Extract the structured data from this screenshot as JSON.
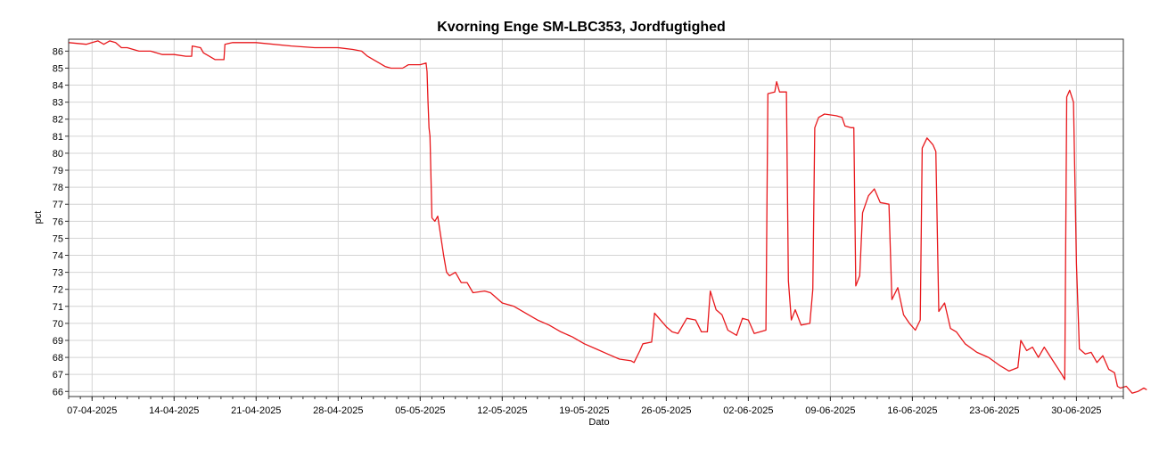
{
  "chart_data": {
    "type": "line",
    "title": "Kvorning Enge SM-LBC353, Jordfugtighed",
    "xlabel": "Dato",
    "ylabel": "pct",
    "xlim": [
      "2025-04-05",
      "2025-07-04"
    ],
    "ylim": [
      65.7,
      86.7
    ],
    "grid": true,
    "x_ticks": [
      "07-04-2025",
      "14-04-2025",
      "21-04-2025",
      "28-04-2025",
      "05-05-2025",
      "12-05-2025",
      "19-05-2025",
      "26-05-2025",
      "02-06-2025",
      "09-06-2025",
      "16-06-2025",
      "23-06-2025",
      "30-06-2025"
    ],
    "y_ticks": [
      66,
      67,
      68,
      69,
      70,
      71,
      72,
      73,
      74,
      75,
      76,
      77,
      78,
      79,
      80,
      81,
      82,
      83,
      84,
      85,
      86
    ],
    "series": [
      {
        "color": "#e8181c",
        "points": [
          [
            "2025-04-05 00:00",
            86.5
          ],
          [
            "2025-04-06 12:00",
            86.4
          ],
          [
            "2025-04-07 00:00",
            86.5
          ],
          [
            "2025-04-07 12:00",
            86.6
          ],
          [
            "2025-04-08 00:00",
            86.4
          ],
          [
            "2025-04-08 12:00",
            86.6
          ],
          [
            "2025-04-09 00:00",
            86.5
          ],
          [
            "2025-04-09 12:00",
            86.2
          ],
          [
            "2025-04-10 00:00",
            86.2
          ],
          [
            "2025-04-11 00:00",
            86.0
          ],
          [
            "2025-04-12 00:00",
            86.0
          ],
          [
            "2025-04-13 00:00",
            85.8
          ],
          [
            "2025-04-14 00:00",
            85.8
          ],
          [
            "2025-04-15 00:00",
            85.7
          ],
          [
            "2025-04-15 12:00",
            85.7
          ],
          [
            "2025-04-15 13:00",
            86.3
          ],
          [
            "2025-04-16 06:00",
            86.2
          ],
          [
            "2025-04-16 12:00",
            85.9
          ],
          [
            "2025-04-17 00:00",
            85.7
          ],
          [
            "2025-04-17 12:00",
            85.5
          ],
          [
            "2025-04-18 06:00",
            85.5
          ],
          [
            "2025-04-18 08:00",
            86.4
          ],
          [
            "2025-04-19 00:00",
            86.5
          ],
          [
            "2025-04-21 00:00",
            86.5
          ],
          [
            "2025-04-24 00:00",
            86.3
          ],
          [
            "2025-04-26 00:00",
            86.2
          ],
          [
            "2025-04-28 00:00",
            86.2
          ],
          [
            "2025-04-29 06:00",
            86.1
          ],
          [
            "2025-04-30 00:00",
            86.0
          ],
          [
            "2025-04-30 12:00",
            85.7
          ],
          [
            "2025-05-01 00:00",
            85.5
          ],
          [
            "2025-05-01 12:00",
            85.3
          ],
          [
            "2025-05-02 00:00",
            85.1
          ],
          [
            "2025-05-02 12:00",
            85.0
          ],
          [
            "2025-05-03 12:00",
            85.0
          ],
          [
            "2025-05-04 00:00",
            85.2
          ],
          [
            "2025-05-05 00:00",
            85.2
          ],
          [
            "2025-05-05 12:00",
            85.3
          ],
          [
            "2025-05-05 14:00",
            84.8
          ],
          [
            "2025-05-05 16:00",
            83.0
          ],
          [
            "2025-05-05 18:00",
            81.5
          ],
          [
            "2025-05-05 20:00",
            81.0
          ],
          [
            "2025-05-06 00:00",
            76.2
          ],
          [
            "2025-05-06 06:00",
            76.0
          ],
          [
            "2025-05-06 12:00",
            76.3
          ],
          [
            "2025-05-07 00:00",
            74.0
          ],
          [
            "2025-05-07 06:00",
            73.0
          ],
          [
            "2025-05-07 12:00",
            72.8
          ],
          [
            "2025-05-08 00:00",
            73.0
          ],
          [
            "2025-05-08 12:00",
            72.4
          ],
          [
            "2025-05-09 00:00",
            72.4
          ],
          [
            "2025-05-09 12:00",
            71.8
          ],
          [
            "2025-05-10 12:00",
            71.9
          ],
          [
            "2025-05-11 00:00",
            71.8
          ],
          [
            "2025-05-11 12:00",
            71.5
          ],
          [
            "2025-05-12 00:00",
            71.2
          ],
          [
            "2025-05-13 00:00",
            71.0
          ],
          [
            "2025-05-14 00:00",
            70.6
          ],
          [
            "2025-05-15 00:00",
            70.2
          ],
          [
            "2025-05-16 00:00",
            69.9
          ],
          [
            "2025-05-17 00:00",
            69.5
          ],
          [
            "2025-05-18 00:00",
            69.2
          ],
          [
            "2025-05-19 00:00",
            68.8
          ],
          [
            "2025-05-20 00:00",
            68.5
          ],
          [
            "2025-05-21 00:00",
            68.2
          ],
          [
            "2025-05-22 00:00",
            67.9
          ],
          [
            "2025-05-23 00:00",
            67.8
          ],
          [
            "2025-05-23 06:00",
            67.7
          ],
          [
            "2025-05-23 18:00",
            68.4
          ],
          [
            "2025-05-24 00:00",
            68.8
          ],
          [
            "2025-05-24 18:00",
            68.9
          ],
          [
            "2025-05-25 00:00",
            70.6
          ],
          [
            "2025-05-25 12:00",
            70.2
          ],
          [
            "2025-05-26 00:00",
            69.8
          ],
          [
            "2025-05-26 12:00",
            69.5
          ],
          [
            "2025-05-27 00:00",
            69.4
          ],
          [
            "2025-05-27 18:00",
            70.3
          ],
          [
            "2025-05-28 12:00",
            70.2
          ],
          [
            "2025-05-29 00:00",
            69.5
          ],
          [
            "2025-05-29 12:00",
            69.5
          ],
          [
            "2025-05-29 18:00",
            71.9
          ],
          [
            "2025-05-30 06:00",
            70.8
          ],
          [
            "2025-05-30 18:00",
            70.5
          ],
          [
            "2025-05-31 06:00",
            69.6
          ],
          [
            "2025-06-01 00:00",
            69.3
          ],
          [
            "2025-06-01 12:00",
            70.3
          ],
          [
            "2025-06-02 00:00",
            70.2
          ],
          [
            "2025-06-02 12:00",
            69.4
          ],
          [
            "2025-06-03 12:00",
            69.6
          ],
          [
            "2025-06-03 16:00",
            83.5
          ],
          [
            "2025-06-04 06:00",
            83.6
          ],
          [
            "2025-06-04 10:00",
            84.2
          ],
          [
            "2025-06-04 16:00",
            83.6
          ],
          [
            "2025-06-05 06:00",
            83.6
          ],
          [
            "2025-06-05 10:00",
            72.5
          ],
          [
            "2025-06-05 16:00",
            70.2
          ],
          [
            "2025-06-06 00:00",
            70.8
          ],
          [
            "2025-06-06 12:00",
            69.9
          ],
          [
            "2025-06-07 06:00",
            70.0
          ],
          [
            "2025-06-07 12:00",
            72.0
          ],
          [
            "2025-06-07 16:00",
            81.5
          ],
          [
            "2025-06-08 00:00",
            82.1
          ],
          [
            "2025-06-08 12:00",
            82.3
          ],
          [
            "2025-06-09 12:00",
            82.2
          ],
          [
            "2025-06-10 00:00",
            82.1
          ],
          [
            "2025-06-10 06:00",
            81.6
          ],
          [
            "2025-06-10 18:00",
            81.5
          ],
          [
            "2025-06-11 00:00",
            81.5
          ],
          [
            "2025-06-11 04:00",
            72.2
          ],
          [
            "2025-06-11 12:00",
            72.8
          ],
          [
            "2025-06-11 18:00",
            76.5
          ],
          [
            "2025-06-12 06:00",
            77.5
          ],
          [
            "2025-06-12 18:00",
            77.9
          ],
          [
            "2025-06-13 06:00",
            77.1
          ],
          [
            "2025-06-14 00:00",
            77.0
          ],
          [
            "2025-06-14 06:00",
            71.4
          ],
          [
            "2025-06-14 18:00",
            72.1
          ],
          [
            "2025-06-15 06:00",
            70.5
          ],
          [
            "2025-06-15 18:00",
            70.0
          ],
          [
            "2025-06-16 06:00",
            69.6
          ],
          [
            "2025-06-16 16:00",
            70.2
          ],
          [
            "2025-06-16 20:00",
            80.3
          ],
          [
            "2025-06-17 06:00",
            80.9
          ],
          [
            "2025-06-17 18:00",
            80.5
          ],
          [
            "2025-06-18 00:00",
            80.1
          ],
          [
            "2025-06-18 06:00",
            70.7
          ],
          [
            "2025-06-18 18:00",
            71.2
          ],
          [
            "2025-06-19 06:00",
            69.7
          ],
          [
            "2025-06-19 18:00",
            69.5
          ],
          [
            "2025-06-20 12:00",
            68.8
          ],
          [
            "2025-06-21 12:00",
            68.3
          ],
          [
            "2025-06-22 12:00",
            68.0
          ],
          [
            "2025-06-23 12:00",
            67.5
          ],
          [
            "2025-06-24 06:00",
            67.2
          ],
          [
            "2025-06-25 00:00",
            67.4
          ],
          [
            "2025-06-25 06:00",
            69.0
          ],
          [
            "2025-06-25 18:00",
            68.4
          ],
          [
            "2025-06-26 06:00",
            68.6
          ],
          [
            "2025-06-26 18:00",
            68.0
          ],
          [
            "2025-06-27 06:00",
            68.6
          ],
          [
            "2025-06-28 00:00",
            67.8
          ],
          [
            "2025-06-28 18:00",
            67.0
          ],
          [
            "2025-06-29 00:00",
            66.7
          ],
          [
            "2025-06-29 04:00",
            83.3
          ],
          [
            "2025-06-29 10:00",
            83.7
          ],
          [
            "2025-06-29 18:00",
            83.0
          ],
          [
            "2025-06-30 00:00",
            73.5
          ],
          [
            "2025-06-30 06:00",
            68.5
          ],
          [
            "2025-06-30 18:00",
            68.2
          ],
          [
            "2025-07-01 06:00",
            68.3
          ],
          [
            "2025-07-01 18:00",
            67.7
          ],
          [
            "2025-07-02 06:00",
            68.1
          ],
          [
            "2025-07-02 18:00",
            67.3
          ],
          [
            "2025-07-03 06:00",
            67.1
          ],
          [
            "2025-07-03 12:00",
            66.3
          ],
          [
            "2025-07-03 18:00",
            66.2
          ],
          [
            "2025-07-04 06:00",
            66.3
          ],
          [
            "2025-07-04 18:00",
            65.9
          ],
          [
            "2025-07-05 06:00",
            66.0
          ],
          [
            "2025-07-05 18:00",
            66.2
          ],
          [
            "2025-07-06 00:00",
            66.1
          ]
        ]
      }
    ]
  }
}
